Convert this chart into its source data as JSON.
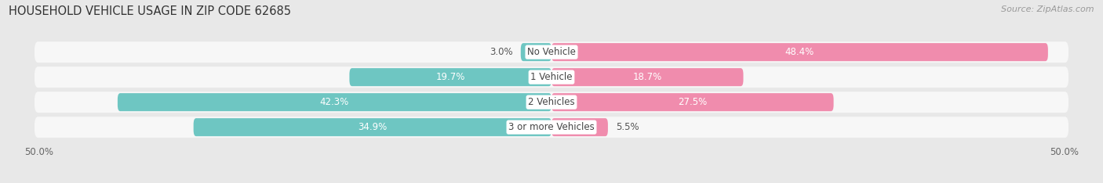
{
  "title": "HOUSEHOLD VEHICLE USAGE IN ZIP CODE 62685",
  "source": "Source: ZipAtlas.com",
  "categories": [
    "No Vehicle",
    "1 Vehicle",
    "2 Vehicles",
    "3 or more Vehicles"
  ],
  "owner_values": [
    3.0,
    19.7,
    42.3,
    34.9
  ],
  "renter_values": [
    48.4,
    18.7,
    27.5,
    5.5
  ],
  "owner_color": "#6ec6c2",
  "renter_color": "#f08cad",
  "bar_height": 0.72,
  "row_bg_color": "#f7f7f7",
  "outer_bg_color": "#e8e8e8",
  "title_fontsize": 10.5,
  "source_fontsize": 8,
  "label_fontsize": 8.5,
  "cat_fontsize": 8.5,
  "xlim_left": -50,
  "xlim_right": 50
}
